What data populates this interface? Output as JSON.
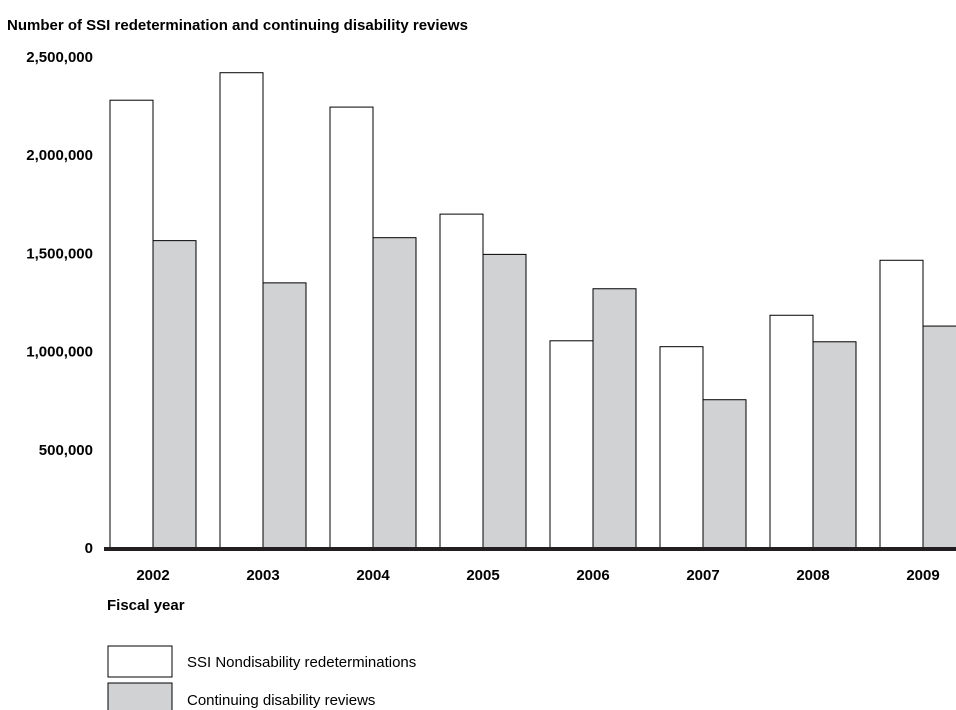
{
  "chart_data": {
    "type": "bar",
    "title": "Number of SSI redetermination and continuing disability reviews",
    "xlabel": "Fiscal year",
    "ylabel": "",
    "categories": [
      "2002",
      "2003",
      "2004",
      "2005",
      "2006",
      "2007",
      "2008",
      "2009"
    ],
    "series": [
      {
        "name": "SSI Nondisability redeterminations",
        "color": "#ffffff",
        "values": [
          2280000,
          2420000,
          2245000,
          1700000,
          1055000,
          1025000,
          1185000,
          1465000
        ]
      },
      {
        "name": "Continuing disability reviews",
        "color": "#d1d2d4",
        "values": [
          1565000,
          1350000,
          1580000,
          1495000,
          1320000,
          755000,
          1050000,
          1130000
        ]
      }
    ],
    "ylim": [
      0,
      2500000
    ],
    "yticks": [
      0,
      500000,
      1000000,
      1500000,
      2000000,
      2500000
    ],
    "ytick_labels": [
      "0",
      "500,000",
      "1,000,000",
      "1,500,000",
      "2,000,000",
      "2,500,000"
    ],
    "grid": false,
    "legend_position": "bottom-left",
    "bar_outline_color": "#000000",
    "axis_color": "#231f20"
  }
}
